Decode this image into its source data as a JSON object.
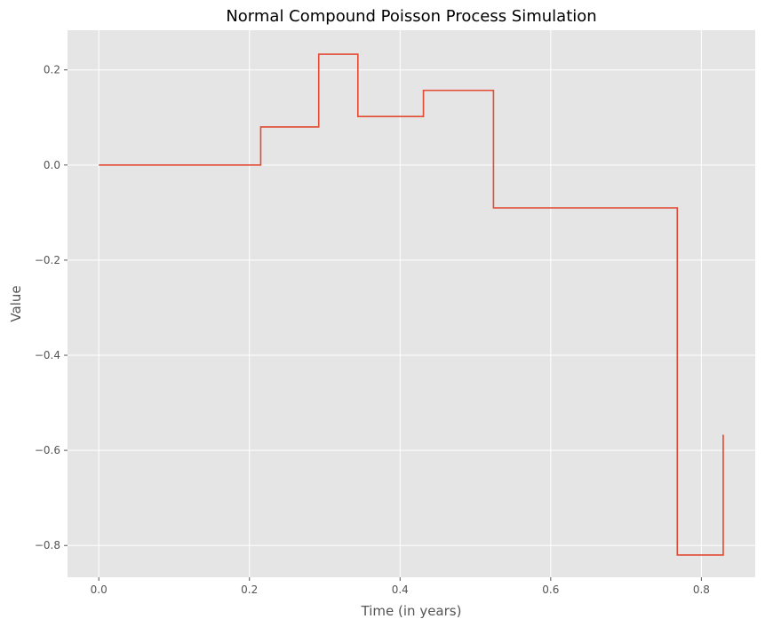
{
  "chart_data": {
    "type": "line",
    "step": "post",
    "title": "Normal Compound Poisson Process Simulation",
    "xlabel": "Time (in years)",
    "ylabel": "Value",
    "xlim": [
      -0.0415,
      0.8715
    ],
    "ylim": [
      -0.8668,
      0.2835
    ],
    "xticks": [
      0.0,
      0.2,
      0.4,
      0.6,
      0.8
    ],
    "xtick_labels": [
      "0.0",
      "0.2",
      "0.4",
      "0.6",
      "0.8"
    ],
    "yticks": [
      -0.8,
      -0.6,
      -0.4,
      -0.2,
      0.0,
      0.2
    ],
    "ytick_labels": [
      "−0.8",
      "−0.6",
      "−0.4",
      "−0.2",
      "0.0",
      "0.2"
    ],
    "grid": true,
    "legend": "none",
    "series": [
      {
        "color": "#e24a33",
        "x": [
          0.0,
          0.215,
          0.292,
          0.344,
          0.431,
          0.524,
          0.768,
          0.829
        ],
        "y": [
          0.0,
          0.08,
          0.233,
          0.102,
          0.157,
          -0.09,
          -0.82,
          -0.567
        ]
      }
    ]
  },
  "colors": {
    "plot_background": "#e5e5e5",
    "grid": "#ffffff",
    "line": "#e24a33",
    "tick_text": "#555555"
  }
}
